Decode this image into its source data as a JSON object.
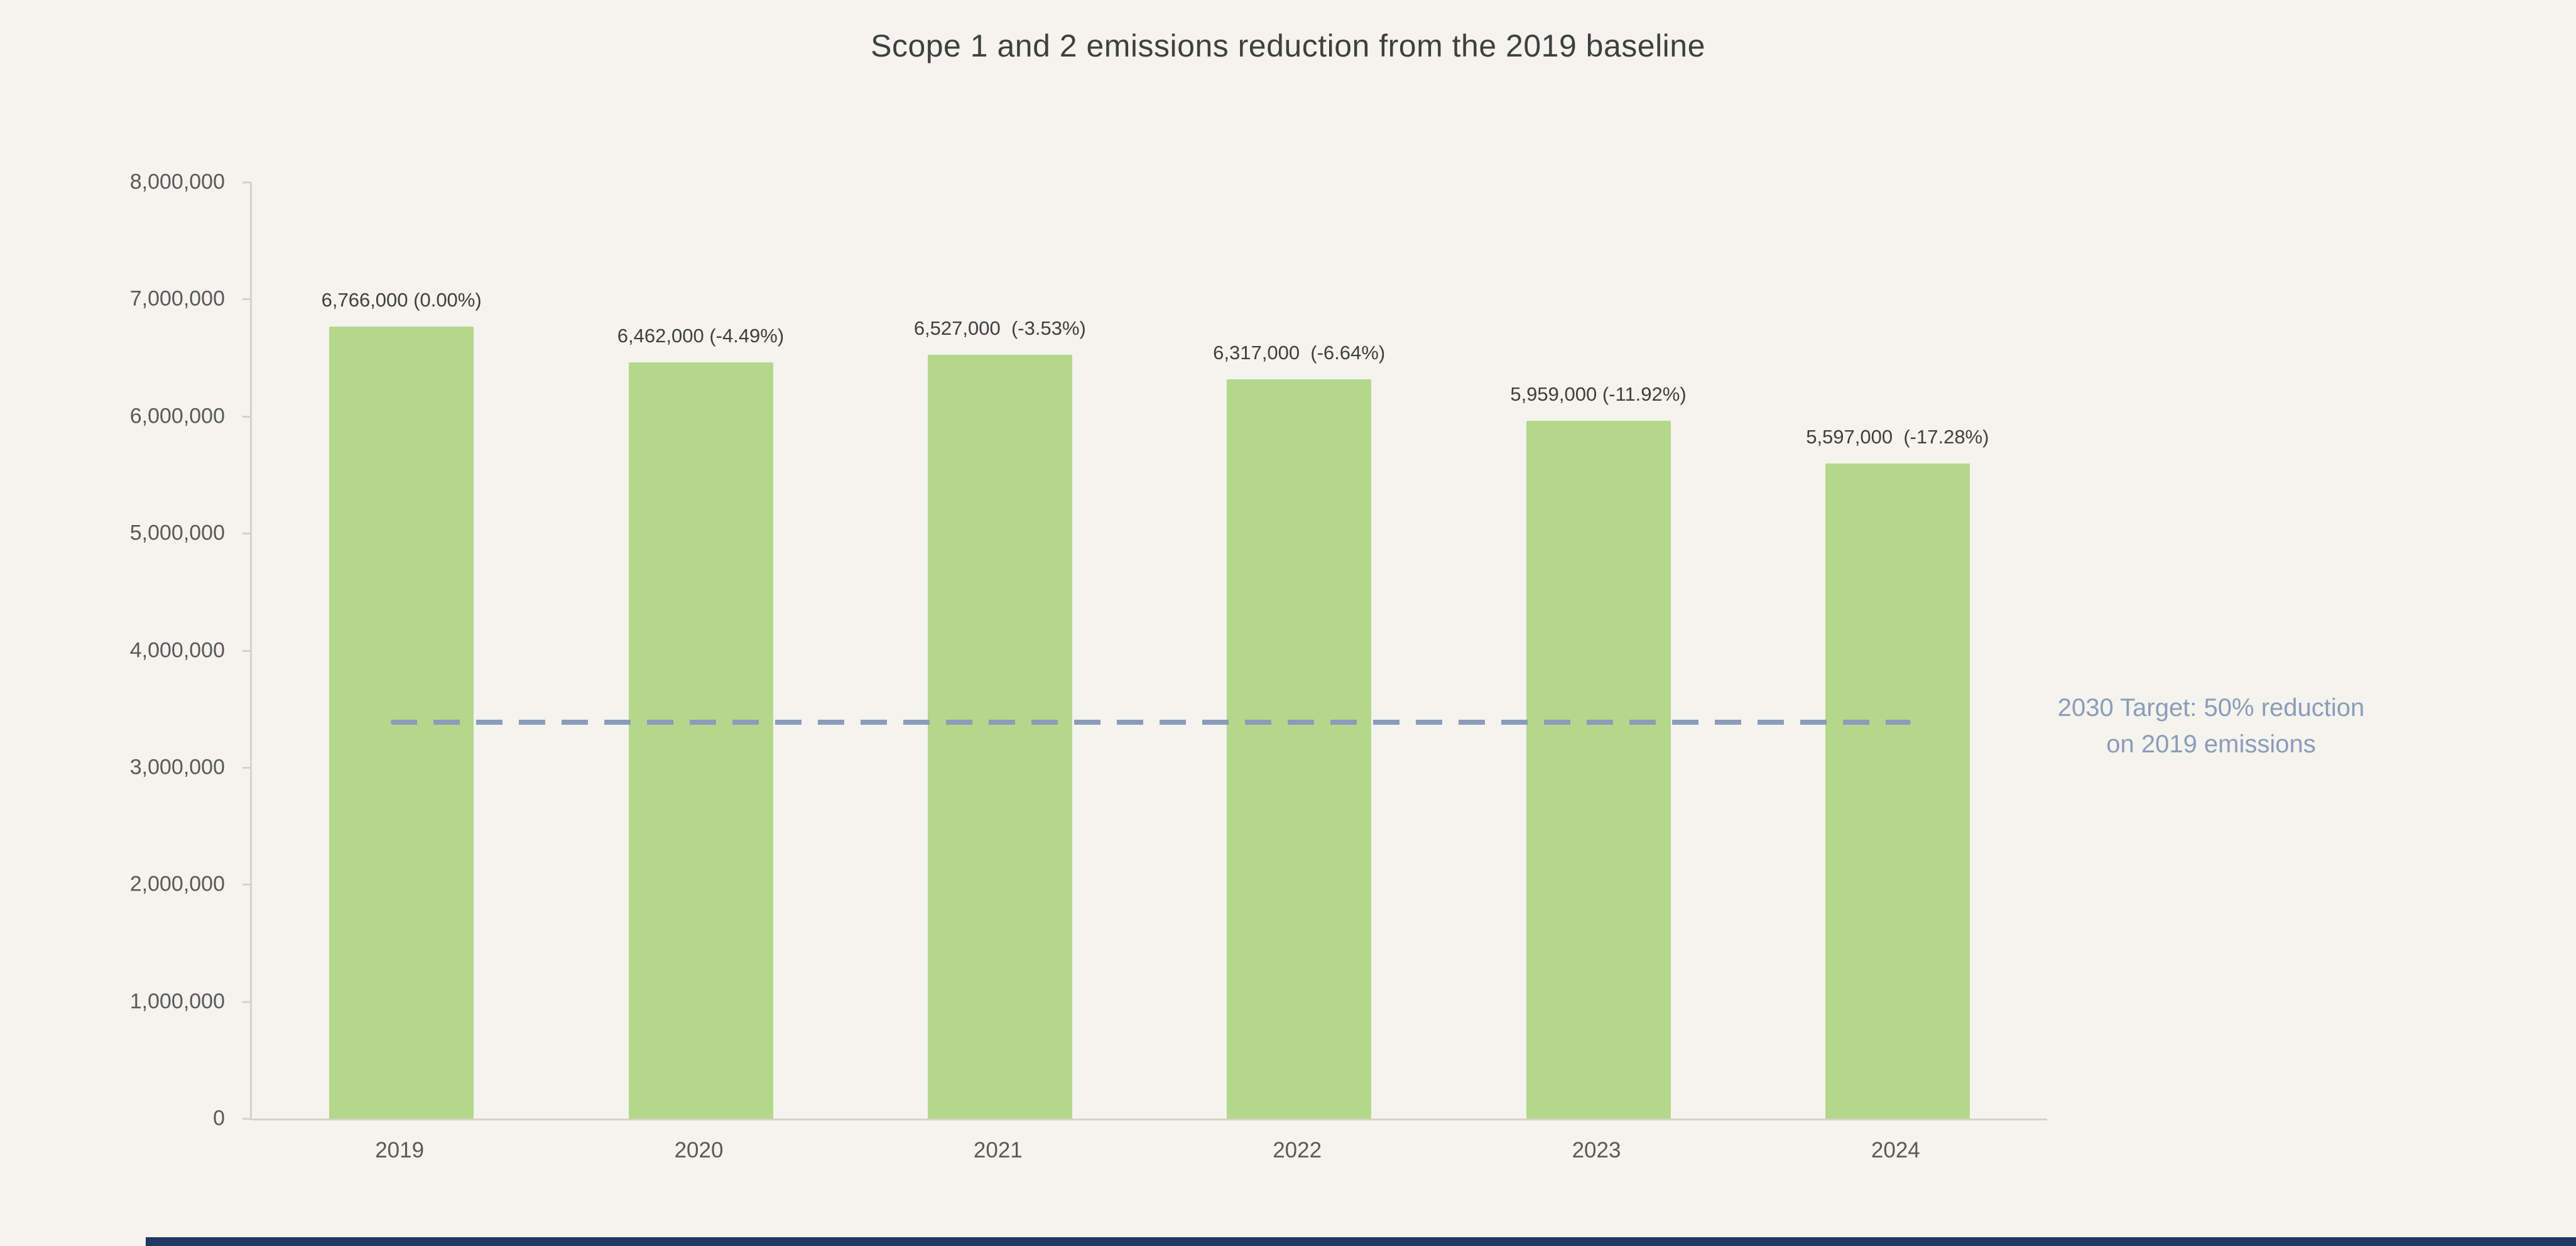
{
  "page": {
    "background_color": "#f5f3ed",
    "accent_bar_color": "#1f3864"
  },
  "chart_data": {
    "type": "bar",
    "title": "Scope 1 and 2 emissions reduction from the 2019 baseline",
    "xlabel": "",
    "ylabel": "",
    "grid": false,
    "legend": null,
    "categories": [
      "2019",
      "2020",
      "2021",
      "2022",
      "2023",
      "2024"
    ],
    "values": [
      6766000,
      6462000,
      6527000,
      6317000,
      5959000,
      5597000
    ],
    "bar_labels": [
      "6,766,000 (0.00%)",
      "6,462,000 (-4.49%)",
      "6,527,000  (-3.53%)",
      "6,317,000  (-6.64%)",
      "5,959,000 (-11.92%)",
      "5,597,000  (-17.28%)"
    ],
    "ylim": [
      0,
      8000000
    ],
    "y_tick_step": 1000000,
    "y_tick_labels": [
      "0",
      "1,000,000",
      "2,000,000",
      "3,000,000",
      "4,000,000",
      "5,000,000",
      "6,000,000",
      "7,000,000",
      "8,000,000"
    ],
    "bar_color": "#b3d88c",
    "target_line": {
      "value": 3383000,
      "color": "#8a9cba",
      "label_lines": [
        "2030 Target: 50% reduction",
        "on 2019 emissions"
      ]
    }
  }
}
